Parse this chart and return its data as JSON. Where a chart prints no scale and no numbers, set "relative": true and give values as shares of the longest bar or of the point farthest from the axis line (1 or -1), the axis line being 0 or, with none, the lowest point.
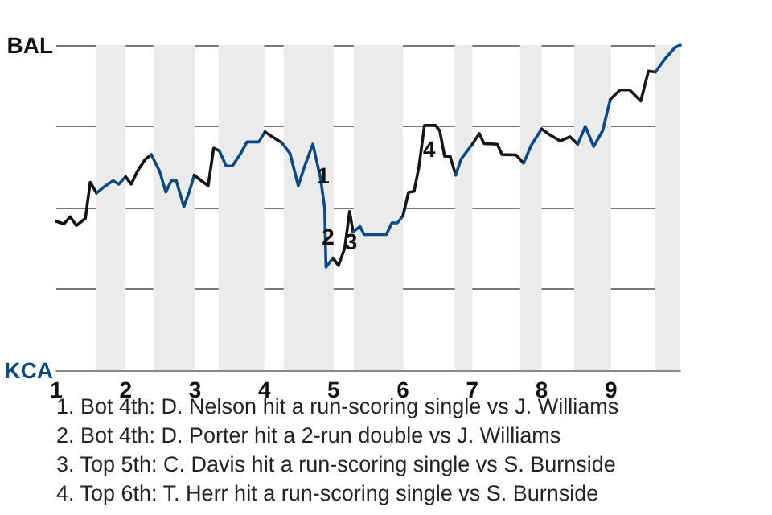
{
  "chart_data": {
    "type": "line",
    "relative": true,
    "xlim": [
      1,
      10
    ],
    "xticks": [
      1,
      2,
      3,
      4,
      5,
      6,
      7,
      8,
      9
    ],
    "grid": "y",
    "marker": "none",
    "series": [
      {
        "color": "#111111",
        "x": [
          1,
          1.11,
          1.2,
          1.29,
          1.42,
          1.49,
          1.58
        ],
        "values": [
          0.458,
          0.45,
          0.472,
          0.445,
          0.467,
          0.578,
          0.545
        ]
      },
      {
        "color": "#0b4a82",
        "x": [
          1.58,
          1.71,
          1.82,
          1.9,
          2.0
        ],
        "values": [
          0.545,
          0.567,
          0.583,
          0.572,
          0.595
        ]
      },
      {
        "color": "#121212",
        "x": [
          2.0,
          2.08,
          2.17,
          2.28,
          2.37
        ],
        "values": [
          0.595,
          0.572,
          0.612,
          0.648,
          0.663
        ]
      },
      {
        "color": "#0b4a83",
        "x": [
          2.37,
          2.49,
          2.58,
          2.66,
          2.73,
          2.84,
          2.92,
          2.99
        ],
        "values": [
          0.663,
          0.612,
          0.548,
          0.583,
          0.583,
          0.503,
          0.55,
          0.6
        ]
      },
      {
        "color": "#131313",
        "x": [
          2.99,
          3.09,
          3.19,
          3.27,
          3.35
        ],
        "values": [
          0.6,
          0.583,
          0.567,
          0.683,
          0.675
        ]
      },
      {
        "color": "#0b4a84",
        "x": [
          3.35,
          3.45,
          3.54,
          3.66,
          3.75,
          3.92,
          4.01
        ],
        "values": [
          0.675,
          0.628,
          0.628,
          0.667,
          0.702,
          0.702,
          0.733
        ]
      },
      {
        "color": "#141414",
        "x": [
          4.01,
          4.12,
          4.25
        ],
        "values": [
          0.733,
          0.717,
          0.7
        ]
      },
      {
        "color": "#0b4a85",
        "x": [
          4.25,
          4.37,
          4.49,
          4.59,
          4.7,
          4.81,
          4.87,
          4.89,
          4.99
        ],
        "values": [
          0.7,
          0.667,
          0.567,
          0.633,
          0.695,
          0.592,
          0.5,
          0.317,
          0.345
        ]
      },
      {
        "color": "#151515",
        "x": [
          4.99,
          5.07,
          5.16,
          5.23,
          5.28
        ],
        "values": [
          0.345,
          0.322,
          0.375,
          0.488,
          0.425
        ]
      },
      {
        "color": "#0b4a86",
        "x": [
          5.28,
          5.38,
          5.44,
          5.76,
          5.84,
          5.92,
          6.0
        ],
        "values": [
          0.425,
          0.442,
          0.417,
          0.417,
          0.453,
          0.453,
          0.475
        ]
      },
      {
        "color": "#161616",
        "x": [
          6.0,
          6.08,
          6.16,
          6.23,
          6.31,
          6.47,
          6.53,
          6.6,
          6.68,
          6.76
        ],
        "values": [
          0.475,
          0.547,
          0.55,
          0.625,
          0.753,
          0.753,
          0.737,
          0.658,
          0.658,
          0.6
        ]
      },
      {
        "color": "#0b4a87",
        "x": [
          6.76,
          6.84,
          7.0
        ],
        "values": [
          0.6,
          0.65,
          0.695
        ]
      },
      {
        "color": "#171717",
        "x": [
          7.0,
          7.1,
          7.17,
          7.36,
          7.43,
          7.63,
          7.74
        ],
        "values": [
          0.695,
          0.728,
          0.697,
          0.695,
          0.663,
          0.662,
          0.637
        ]
      },
      {
        "color": "#0b4a88",
        "x": [
          7.74,
          7.85,
          8.0
        ],
        "values": [
          0.637,
          0.692,
          0.742
        ]
      },
      {
        "color": "#181818",
        "x": [
          8.0,
          8.11,
          8.27,
          8.41,
          8.52
        ],
        "values": [
          0.742,
          0.725,
          0.705,
          0.718,
          0.695
        ]
      },
      {
        "color": "#0b4a89",
        "x": [
          8.52,
          8.63,
          8.75,
          8.88,
          8.99
        ],
        "values": [
          0.695,
          0.75,
          0.688,
          0.737,
          0.833
        ]
      },
      {
        "color": "#191919",
        "x": [
          8.99,
          9.13,
          9.27,
          9.43,
          9.54,
          9.64
        ],
        "values": [
          0.833,
          0.862,
          0.862,
          0.828,
          0.92,
          0.917
        ]
      },
      {
        "color": "#0b4a8a",
        "x": [
          9.64,
          9.78,
          9.92,
          10
        ],
        "values": [
          0.917,
          0.958,
          0.992,
          1
        ]
      }
    ],
    "bands": [
      {
        "axis": "x",
        "from": 1.57,
        "to": 2,
        "color": "#ebebeb"
      },
      {
        "axis": "x",
        "from": 2.4,
        "to": 3,
        "color": "#ebebeb"
      },
      {
        "axis": "x",
        "from": 3.34,
        "to": 4,
        "color": "#ebebeb"
      },
      {
        "axis": "x",
        "from": 4.28,
        "to": 5,
        "color": "#ebebeb"
      },
      {
        "axis": "x",
        "from": 5.29,
        "to": 6,
        "color": "#ebebeb"
      },
      {
        "axis": "x",
        "from": 6.75,
        "to": 7,
        "color": "#ebebeb"
      },
      {
        "axis": "x",
        "from": 7.69,
        "to": 8,
        "color": "#ebebeb"
      },
      {
        "axis": "x",
        "from": 8.47,
        "to": 9,
        "color": "#ebebeb"
      },
      {
        "axis": "x",
        "from": 9.64,
        "to": 10,
        "color": "#ebebeb"
      }
    ],
    "annotations": [
      "BAL",
      "KCA",
      {
        "text": "1",
        "x": 4.85,
        "y": 0.6
      },
      {
        "text": "2",
        "x": 4.92,
        "y": 0.41
      },
      {
        "text": "3",
        "x": 5.25,
        "y": 0.395
      },
      {
        "text": "4",
        "x": 6.38,
        "y": 0.68
      },
      "1. Bot 4th: D. Nelson hit a run-scoring single vs J. Williams",
      "2. Bot 4th: D. Porter hit a 2-run double vs J. Williams",
      "3. Top 5th: C. Davis hit a run-scoring single vs S. Burnside",
      "4. Top 6th: T. Herr hit a run-scoring single vs S. Burnside"
    ]
  }
}
